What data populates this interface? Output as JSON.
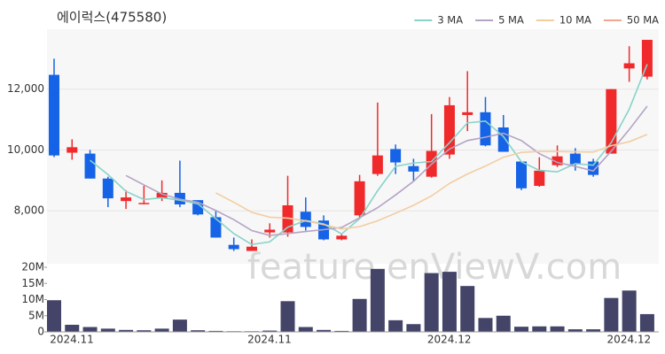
{
  "watermark": "feature.enViewV.com",
  "chart_data": [
    {
      "type": "candlestick",
      "title": "에이럭스(475580)",
      "open": [
        12470,
        9910,
        9880,
        9060,
        8320,
        8260,
        8410,
        8590,
        8350,
        7790,
        6880,
        6680,
        7290,
        7290,
        7970,
        7680,
        7060,
        7850,
        9210,
        10030,
        9470,
        9120,
        9850,
        11150,
        11240,
        10740,
        9620,
        8820,
        9500,
        9880,
        9620,
        9880,
        12680,
        12410
      ],
      "high": [
        13000,
        10350,
        10000,
        9120,
        8680,
        8820,
        9000,
        9650,
        8350,
        8000,
        7120,
        7060,
        7590,
        9150,
        8440,
        7850,
        7260,
        9180,
        11560,
        10180,
        9710,
        11180,
        11740,
        12590,
        11740,
        11150,
        9620,
        9760,
        10150,
        10060,
        9710,
        12000,
        13410,
        13620
      ],
      "low": [
        9765,
        9680,
        9060,
        8120,
        8060,
        8210,
        8320,
        8120,
        7850,
        7120,
        6680,
        6680,
        7120,
        7150,
        7350,
        7030,
        7030,
        7730,
        9150,
        9210,
        8970,
        9090,
        9710,
        10620,
        10120,
        9940,
        8680,
        8790,
        9440,
        9320,
        9120,
        9880,
        12240,
        12320
      ],
      "close": [
        9820,
        10090,
        9060,
        8410,
        8440,
        8260,
        8590,
        8210,
        7880,
        7120,
        6740,
        6820,
        7380,
        8180,
        7470,
        7060,
        7180,
        8970,
        9820,
        9590,
        9290,
        9970,
        11470,
        11240,
        10150,
        9940,
        8740,
        9320,
        9790,
        9530,
        9180,
        12000,
        12850,
        13620
      ],
      "up_color": "#f0292b",
      "down_color": "#1563e6",
      "series": [
        {
          "name": "3 MA",
          "color": "#88d3c9",
          "values": [
            null,
            null,
            9660,
            9190,
            8640,
            8370,
            8430,
            8350,
            8230,
            7740,
            7250,
            6890,
            6980,
            7460,
            7680,
            7570,
            7240,
            7740,
            8660,
            9460,
            9570,
            9620,
            10240,
            10890,
            10950,
            10440,
            9610,
            9330,
            9280,
            9550,
            9500,
            10240,
            11340,
            12820
          ]
        },
        {
          "name": "5 MA",
          "color": "#b4a3c4",
          "values": [
            null,
            null,
            null,
            null,
            9160,
            8850,
            8550,
            8380,
            8280,
            8010,
            7710,
            7350,
            7190,
            7250,
            7320,
            7380,
            7450,
            7770,
            8100,
            8520,
            8970,
            9530,
            10030,
            10310,
            10420,
            10550,
            10310,
            9880,
            9590,
            9460,
            9310,
            9960,
            10670,
            11440
          ]
        },
        {
          "name": "10 MA",
          "color": "#f3cda2",
          "values": [
            null,
            null,
            null,
            null,
            null,
            null,
            null,
            null,
            null,
            8590,
            8280,
            7950,
            7790,
            7760,
            7670,
            7550,
            7400,
            7480,
            7670,
            7920,
            8180,
            8490,
            8900,
            9210,
            9470,
            9760,
            9920,
            9950,
            9950,
            9940,
            9930,
            10140,
            10270,
            10510
          ]
        },
        {
          "name": "50 MA",
          "color": "#f3a68c",
          "values": [
            null,
            null,
            null,
            null,
            null,
            null,
            null,
            null,
            null,
            null,
            null,
            null,
            null,
            null,
            null,
            null,
            null,
            null,
            null,
            null,
            null,
            null,
            null,
            null,
            null,
            null,
            null,
            null,
            null,
            null,
            null,
            null,
            null,
            null
          ]
        }
      ],
      "ylim": [
        6260,
        13970
      ],
      "yticks": [
        {
          "value": 8000,
          "label": "8,000"
        },
        {
          "value": 10000,
          "label": "10,000"
        },
        {
          "value": 12000,
          "label": "12,000"
        }
      ],
      "grid": true,
      "legend": "top-right"
    },
    {
      "type": "bar",
      "categories": [
        "2024.11",
        null,
        null,
        null,
        null,
        null,
        null,
        null,
        null,
        null,
        null,
        "2024.11",
        null,
        null,
        null,
        null,
        null,
        null,
        null,
        null,
        null,
        "2024.12",
        null,
        null,
        null,
        null,
        null,
        null,
        null,
        null,
        null,
        "2024.12",
        null,
        null
      ],
      "values": [
        9800000,
        2200000,
        1500000,
        1000000,
        600000,
        500000,
        1000000,
        3800000,
        500000,
        300000,
        200000,
        200000,
        400000,
        9500000,
        1500000,
        600000,
        300000,
        10200000,
        19500000,
        3600000,
        2400000,
        18200000,
        18600000,
        14200000,
        4300000,
        5000000,
        1600000,
        1700000,
        1700000,
        800000,
        800000,
        10500000,
        12800000,
        5500000
      ],
      "color": "#434468",
      "ylim": [
        0,
        20000000
      ],
      "yticks": [
        0,
        {
          "value": 5000000,
          "label": "5M"
        },
        {
          "value": 10000000,
          "label": "10M"
        },
        {
          "value": 15000000,
          "label": "15M"
        },
        {
          "value": 20000000,
          "label": "20M"
        }
      ]
    }
  ]
}
